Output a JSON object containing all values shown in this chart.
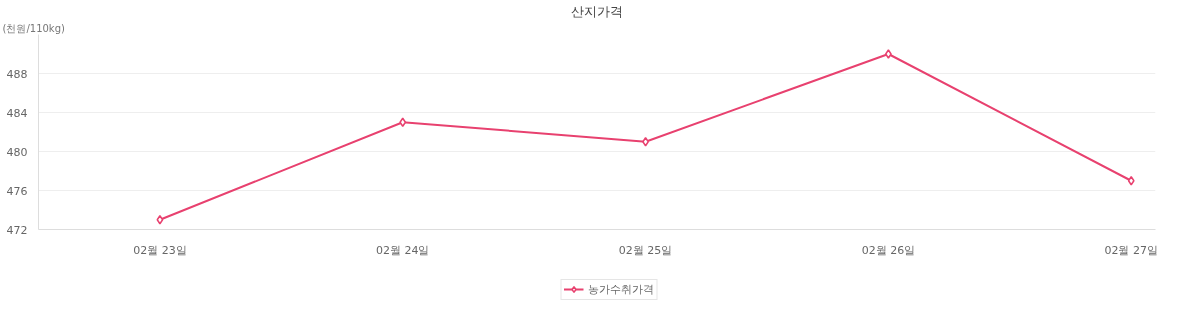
{
  "chart_data": {
    "type": "line",
    "title": "산지가격",
    "ylabel": "(천원/110kg)",
    "categories": [
      "02월 23일",
      "02월 24일",
      "02월 25일",
      "02월 26일",
      "02월 27일"
    ],
    "series": [
      {
        "name": "농가수취가격",
        "color": "#e8416f",
        "values": [
          473,
          483,
          481,
          490,
          477
        ]
      }
    ],
    "ylim": [
      472,
      492
    ],
    "yticks": [
      472,
      476,
      480,
      484,
      488
    ],
    "grid": "y",
    "legend": "bottom",
    "marker": "diamond",
    "line_style": "solid"
  }
}
